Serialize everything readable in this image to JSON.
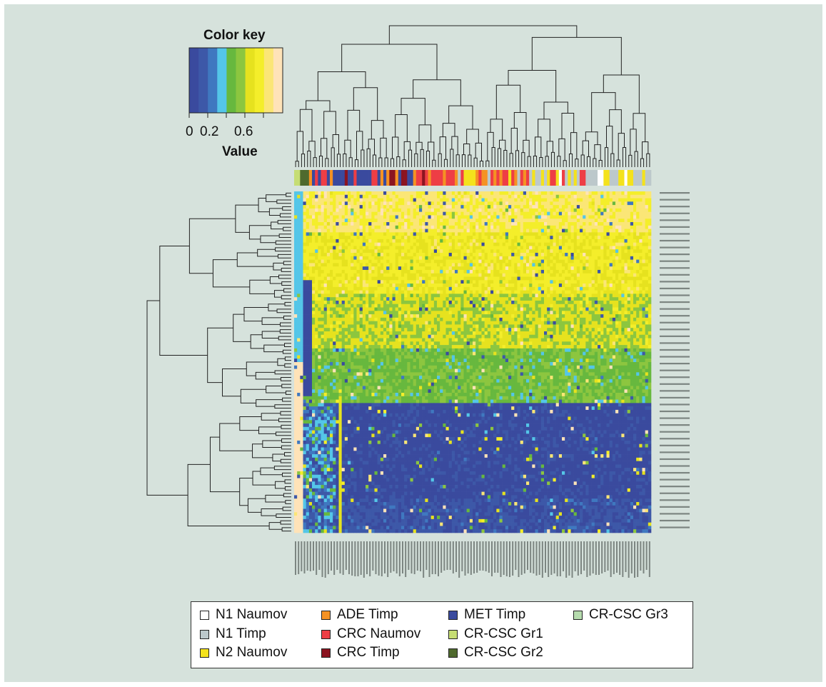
{
  "chart_data": {
    "type": "heatmap",
    "title": "",
    "color_key": {
      "title": "Color key",
      "xlabel": "Value",
      "ticks": [
        "0",
        "0.2",
        "0.6"
      ],
      "colors": [
        "#3a4a9e",
        "#3d58a8",
        "#3f78c0",
        "#54c6e8",
        "#67b83e",
        "#8cc63f",
        "#e6e21e",
        "#f4ee2a",
        "#fbe676",
        "#ffe3b8"
      ]
    },
    "groups": [
      {
        "name": "N1 Naumov",
        "color": "#ffffff"
      },
      {
        "name": "N1 Timp",
        "color": "#bcc8cb"
      },
      {
        "name": "N2 Naumov",
        "color": "#f4e21c"
      },
      {
        "name": "ADE Timp",
        "color": "#f59223"
      },
      {
        "name": "CRC Naumov",
        "color": "#ee3e45"
      },
      {
        "name": "CRC Timp",
        "color": "#8b1420"
      },
      {
        "name": "MET Timp",
        "color": "#3a4a9e"
      },
      {
        "name": "CR-CSC Gr1",
        "color": "#c6dd73"
      },
      {
        "name": "CR-CSC Gr2",
        "color": "#4f6a2e"
      },
      {
        "name": "CR-CSC Gr3",
        "color": "#b6dcae"
      }
    ],
    "row_bands": [
      {
        "rows": "1-12",
        "pattern": "mostly high (0.7-0.9)"
      },
      {
        "rows": "13-30",
        "pattern": "high (0.6-0.8)"
      },
      {
        "rows": "31-46",
        "pattern": "mixed high/medium"
      },
      {
        "rows": "47-62",
        "pattern": "medium (0.4-0.6)"
      },
      {
        "rows": "63-90",
        "pattern": "low (0-0.2)"
      },
      {
        "rows": "91-100",
        "pattern": "low with scattered medium"
      }
    ]
  }
}
